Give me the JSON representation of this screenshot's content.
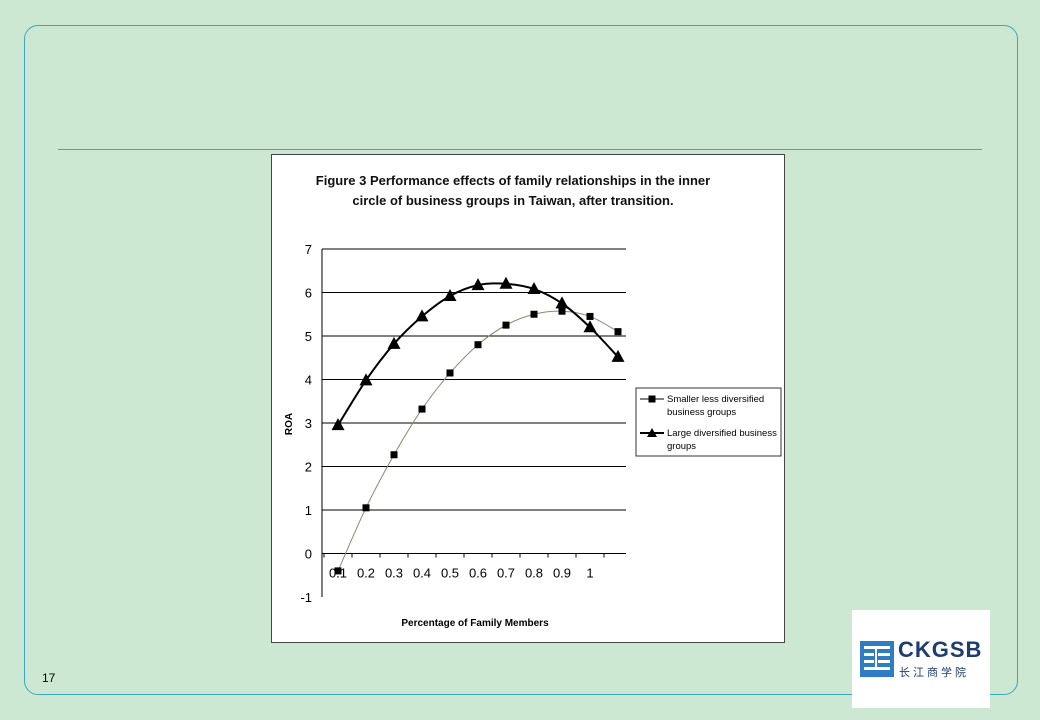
{
  "slide": {
    "page_number": "17",
    "accent_color": "#3aa9bd",
    "background_color": "#cde8d2"
  },
  "logo": {
    "latin_text": "CKGSB",
    "cjk_text": "长江商学院",
    "color": "#1f3c6e",
    "emblem_color": "#2e7cc4"
  },
  "chart_data": {
    "type": "line",
    "title_lines": [
      "Figure 3 Performance effects of family relationships in the inner",
      "circle of business groups in Taiwan, after transition."
    ],
    "xlabel": "Percentage of Family Members",
    "ylabel": "ROA",
    "categories": [
      "0.1",
      "0.2",
      "0.3",
      "0.4",
      "0.5",
      "0.6",
      "0.7",
      "0.8",
      "0.9",
      "1",
      ""
    ],
    "y_ticks": [
      "7",
      "6",
      "5",
      "4",
      "3",
      "2",
      "1",
      "0",
      "-1"
    ],
    "ylim": [
      -1,
      7
    ],
    "grid": "horizontal",
    "legend_position": "right",
    "series": [
      {
        "legend_lines": [
          "Smaller less diversified",
          "business groups"
        ],
        "marker": "square",
        "line_color": "#8a8a6a",
        "values": [
          -0.4,
          1.05,
          2.27,
          3.32,
          4.15,
          4.8,
          5.25,
          5.5,
          5.57,
          5.45,
          5.1
        ]
      },
      {
        "legend_lines": [
          "Large diversified business",
          "groups"
        ],
        "marker": "triangle",
        "line_color": "#000000",
        "values": [
          2.95,
          3.98,
          4.82,
          5.45,
          5.92,
          6.17,
          6.2,
          6.08,
          5.75,
          5.2,
          4.52
        ]
      }
    ]
  }
}
